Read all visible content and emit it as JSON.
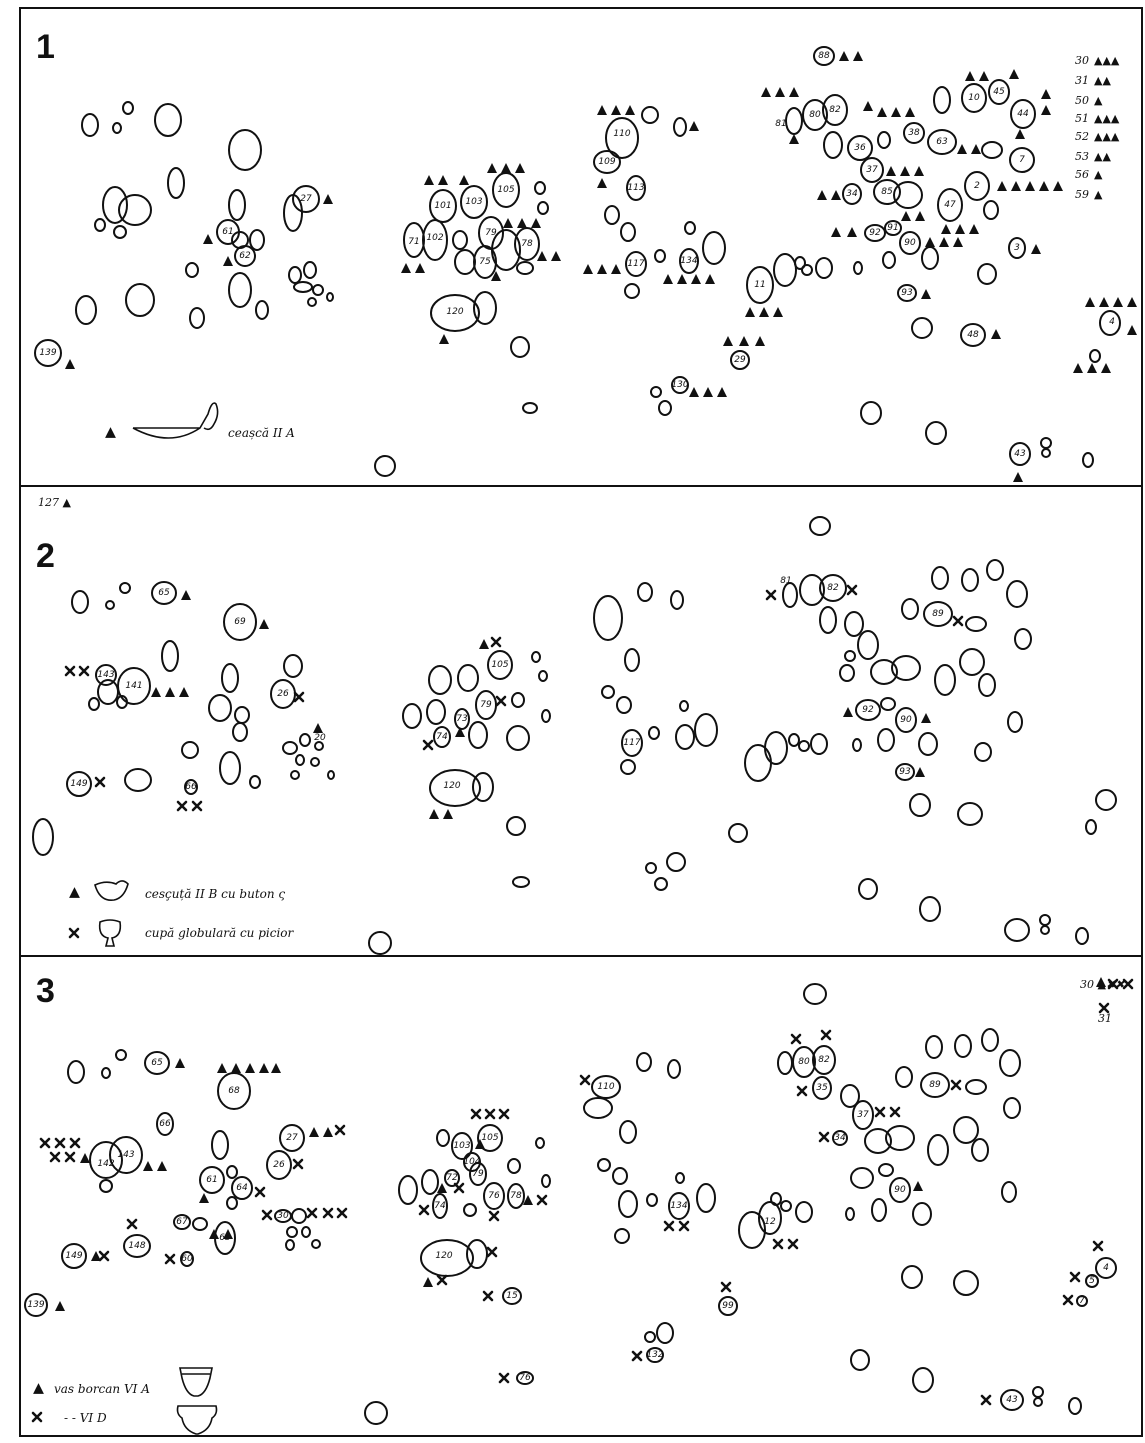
{
  "panels": [
    {
      "label": "1",
      "legend": [
        {
          "symbol": "triangle",
          "text": "ceașcă II A"
        }
      ],
      "counts": [
        {
          "id": "30",
          "marks": "▲▲▲"
        },
        {
          "id": "31",
          "marks": "▲▲"
        },
        {
          "id": "50",
          "marks": "▲"
        },
        {
          "id": "51",
          "marks": "▲▲▲"
        },
        {
          "id": "52",
          "marks": "▲▲▲"
        },
        {
          "id": "53",
          "marks": "▲▲"
        },
        {
          "id": "56",
          "marks": "▲"
        },
        {
          "id": "59",
          "marks": "▲"
        }
      ],
      "pit_numbers": [
        "139",
        "27",
        "61",
        "62",
        "101",
        "103",
        "105",
        "102",
        "71",
        "79",
        "75",
        "78",
        "120",
        "110",
        "109",
        "113",
        "117",
        "134",
        "11",
        "29",
        "130",
        "88",
        "81",
        "80",
        "82",
        "36",
        "37",
        "38",
        "63",
        "10",
        "45",
        "44",
        "7",
        "34",
        "85",
        "2",
        "47",
        "92",
        "91",
        "90",
        "3",
        "93",
        "48",
        "4",
        "43"
      ]
    },
    {
      "label": "2",
      "outside_label": "127 ▲",
      "legend": [
        {
          "symbol": "triangle",
          "text": "cesçuță II B cu buton ς"
        },
        {
          "symbol": "cross",
          "text": "cupă globulară cu picior"
        }
      ],
      "pit_numbers": [
        "65",
        "69",
        "143",
        "141",
        "26",
        "20",
        "149",
        "66",
        "105",
        "73",
        "79",
        "74",
        "120",
        "117",
        "81",
        "82",
        "89",
        "92",
        "90",
        "93"
      ]
    },
    {
      "label": "3",
      "legend": [
        {
          "symbol": "triangle",
          "text": "vas borcan VI A"
        },
        {
          "symbol": "cross",
          "text": "-   -   VI D"
        }
      ],
      "corner_labels": [
        "30 ▲✖✖",
        "31"
      ],
      "pit_numbers": [
        "65",
        "68",
        "66",
        "143",
        "142",
        "27",
        "26",
        "61",
        "64",
        "63",
        "67",
        "30",
        "149",
        "148",
        "60",
        "139",
        "103",
        "104",
        "105",
        "72",
        "79",
        "76",
        "78",
        "74",
        "120",
        "15",
        "76",
        "110",
        "134",
        "12",
        "99",
        "132",
        "80",
        "82",
        "35",
        "89",
        "37",
        "34",
        "90",
        "4",
        "5",
        "7",
        "43"
      ]
    }
  ]
}
